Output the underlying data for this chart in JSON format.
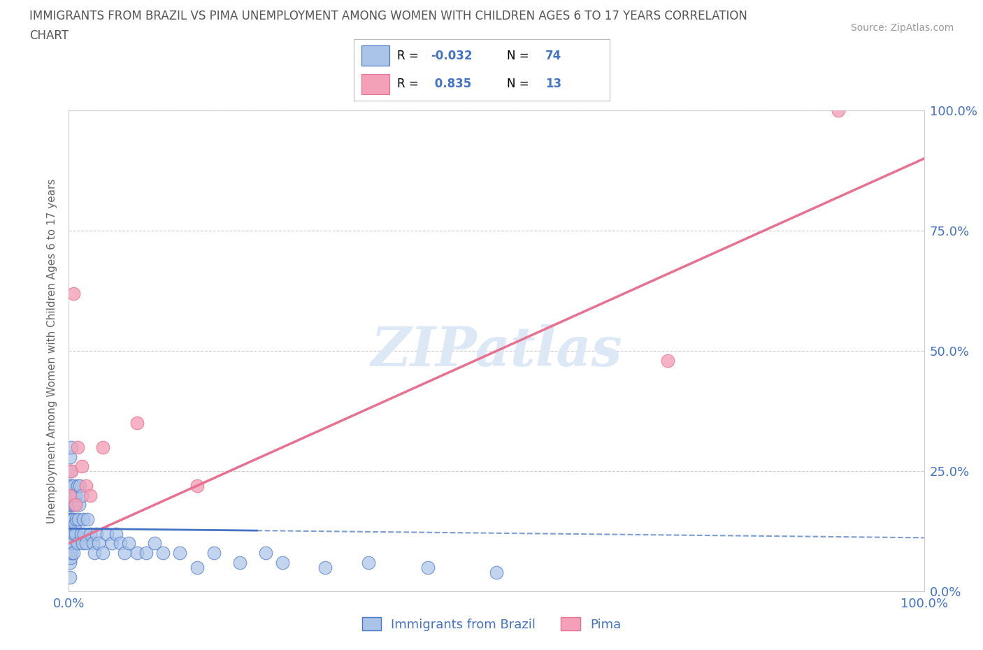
{
  "title_line1": "IMMIGRANTS FROM BRAZIL VS PIMA UNEMPLOYMENT AMONG WOMEN WITH CHILDREN AGES 6 TO 17 YEARS CORRELATION",
  "title_line2": "CHART",
  "source": "Source: ZipAtlas.com",
  "ylabel": "Unemployment Among Women with Children Ages 6 to 17 years",
  "legend_blue_label": "Immigrants from Brazil",
  "legend_pink_label": "Pima",
  "blue_color": "#aac4e8",
  "pink_color": "#f4a0b8",
  "blue_line_color": "#4472c4",
  "pink_line_color": "#e87090",
  "title_color": "#555555",
  "axis_label_color": "#4472c4",
  "watermark_color": "#dce8f5",
  "background_color": "#ffffff",
  "grid_color": "#cccccc",
  "xlim": [
    0.0,
    1.0
  ],
  "ylim": [
    0.0,
    1.0
  ],
  "brazil_x": [
    0.0005,
    0.001,
    0.001,
    0.001,
    0.001,
    0.001,
    0.001,
    0.001,
    0.001,
    0.001,
    0.0015,
    0.002,
    0.002,
    0.002,
    0.002,
    0.002,
    0.002,
    0.003,
    0.003,
    0.003,
    0.003,
    0.003,
    0.004,
    0.004,
    0.004,
    0.005,
    0.005,
    0.005,
    0.005,
    0.006,
    0.006,
    0.007,
    0.007,
    0.008,
    0.008,
    0.009,
    0.01,
    0.01,
    0.011,
    0.012,
    0.013,
    0.014,
    0.015,
    0.016,
    0.017,
    0.018,
    0.02,
    0.022,
    0.025,
    0.028,
    0.03,
    0.032,
    0.035,
    0.04,
    0.045,
    0.05,
    0.055,
    0.06,
    0.065,
    0.07,
    0.08,
    0.09,
    0.1,
    0.11,
    0.13,
    0.15,
    0.17,
    0.2,
    0.23,
    0.25,
    0.3,
    0.35,
    0.42,
    0.5
  ],
  "brazil_y": [
    0.18,
    0.22,
    0.28,
    0.15,
    0.1,
    0.08,
    0.2,
    0.14,
    0.06,
    0.03,
    0.12,
    0.25,
    0.2,
    0.18,
    0.15,
    0.1,
    0.07,
    0.3,
    0.22,
    0.18,
    0.15,
    0.08,
    0.2,
    0.15,
    0.1,
    0.22,
    0.18,
    0.15,
    0.08,
    0.2,
    0.12,
    0.18,
    0.14,
    0.2,
    0.12,
    0.15,
    0.22,
    0.1,
    0.15,
    0.18,
    0.22,
    0.12,
    0.2,
    0.1,
    0.15,
    0.12,
    0.1,
    0.15,
    0.12,
    0.1,
    0.08,
    0.12,
    0.1,
    0.08,
    0.12,
    0.1,
    0.12,
    0.1,
    0.08,
    0.1,
    0.08,
    0.08,
    0.1,
    0.08,
    0.08,
    0.05,
    0.08,
    0.06,
    0.08,
    0.06,
    0.05,
    0.06,
    0.05,
    0.04
  ],
  "pima_x": [
    0.001,
    0.003,
    0.005,
    0.008,
    0.01,
    0.015,
    0.02,
    0.025,
    0.04,
    0.08,
    0.15,
    0.7,
    0.9
  ],
  "pima_y": [
    0.2,
    0.25,
    0.62,
    0.18,
    0.3,
    0.26,
    0.22,
    0.2,
    0.3,
    0.35,
    0.22,
    0.48,
    1.0
  ],
  "brazil_R": -0.032,
  "brazil_N": 74,
  "pima_R": 0.835,
  "pima_N": 13,
  "ytick_labels": [
    "0.0%",
    "25.0%",
    "50.0%",
    "75.0%",
    "100.0%"
  ],
  "ytick_values": [
    0.0,
    0.25,
    0.5,
    0.75,
    1.0
  ],
  "xtick_labels": [
    "0.0%",
    "100.0%"
  ],
  "xtick_values": [
    0.0,
    1.0
  ],
  "brazil_line_solid_end": 0.22,
  "pima_line_y_at_0": 0.1,
  "pima_line_y_at_1": 0.9
}
